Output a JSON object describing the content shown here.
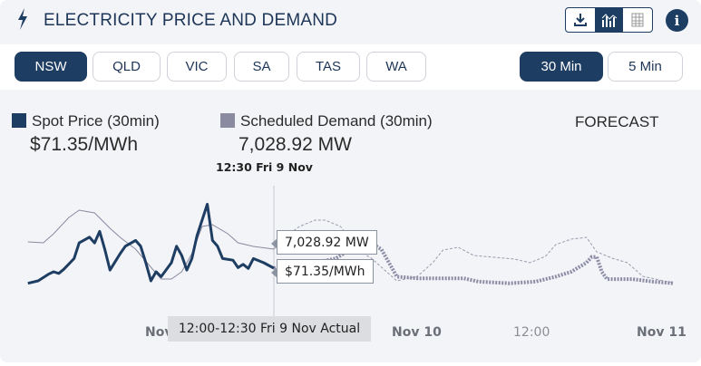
{
  "header": {
    "title": "ELECTRICITY PRICE AND DEMAND",
    "icon": "lightning-bolt-icon",
    "view_icons": [
      "download-icon",
      "chart-icon",
      "table-icon"
    ],
    "active_view": "chart-icon",
    "info_icon": "info-icon"
  },
  "regions": {
    "items": [
      "NSW",
      "QLD",
      "VIC",
      "SA",
      "TAS",
      "WA"
    ],
    "selected": "NSW"
  },
  "intervals": {
    "items": [
      "30 Min",
      "5 Min"
    ],
    "selected": "30 Min"
  },
  "colors": {
    "accent": "#1e3d62",
    "demand": "#8a8aa0",
    "background": "#f3f4f7"
  },
  "legend": {
    "price_label": "Spot Price (30min)",
    "price_value": "$71.35/MWh",
    "demand_label": "Scheduled Demand (30min)",
    "demand_value": "7,028.92 MW",
    "forecast_label": "FORECAST",
    "timestamp": "12:30 Fri 9 Nov"
  },
  "chart_data": {
    "type": "line",
    "x_ticks": [
      "Nov 9",
      "Nov 10",
      "12:00",
      "Nov 11"
    ],
    "grid": false,
    "crosshair_time": "9 Nov 12:30",
    "tooltips": {
      "demand": "7,028.92 MW",
      "price": "$71.35/MWh",
      "x": "12:00-12:30 Fri 9 Nov Actual"
    },
    "series": [
      {
        "name": "Spot Price (30min)",
        "kind": "actual",
        "unit": "$/MWh",
        "points": [
          [
            "8 Nov 12:30",
            53
          ],
          [
            "8 Nov 13:30",
            56
          ],
          [
            "8 Nov 14:30",
            64
          ],
          [
            "8 Nov 15:00",
            67
          ],
          [
            "8 Nov 15:30",
            65
          ],
          [
            "8 Nov 16:00",
            70
          ],
          [
            "8 Nov 17:00",
            83
          ],
          [
            "8 Nov 17:30",
            102
          ],
          [
            "8 Nov 18:30",
            109
          ],
          [
            "8 Nov 19:00",
            102
          ],
          [
            "8 Nov 19:30",
            116
          ],
          [
            "8 Nov 20:00",
            94
          ],
          [
            "8 Nov 20:30",
            69
          ],
          [
            "8 Nov 21:30",
            89
          ],
          [
            "8 Nov 22:00",
            98
          ],
          [
            "8 Nov 23:00",
            105
          ],
          [
            "8 Nov 23:30",
            98
          ],
          [
            "9 Nov 00:00",
            78
          ],
          [
            "9 Nov 00:30",
            56
          ],
          [
            "9 Nov 01:00",
            67
          ],
          [
            "9 Nov 01:30",
            61
          ],
          [
            "9 Nov 02:30",
            78
          ],
          [
            "9 Nov 03:00",
            98
          ],
          [
            "9 Nov 03:30",
            87
          ],
          [
            "9 Nov 04:00",
            69
          ],
          [
            "9 Nov 04:30",
            83
          ],
          [
            "9 Nov 05:00",
            111
          ],
          [
            "9 Nov 06:00",
            149
          ],
          [
            "9 Nov 06:30",
            105
          ],
          [
            "9 Nov 07:00",
            98
          ],
          [
            "9 Nov 07:30",
            83
          ],
          [
            "9 Nov 08:30",
            81
          ],
          [
            "9 Nov 09:00",
            72
          ],
          [
            "9 Nov 09:30",
            76
          ],
          [
            "9 Nov 10:00",
            71
          ],
          [
            "9 Nov 10:30",
            83
          ],
          [
            "9 Nov 11:30",
            78
          ],
          [
            "9 Nov 12:30",
            71.35
          ]
        ]
      },
      {
        "name": "Spot Price (30min)",
        "kind": "forecast",
        "unit": "$/MWh",
        "points": [
          [
            "9 Nov 12:30",
            71.35
          ],
          [
            "9 Nov 14:00",
            75
          ],
          [
            "9 Nov 16:30",
            78
          ],
          [
            "9 Nov 18:30",
            83
          ],
          [
            "9 Nov 20:30",
            98
          ],
          [
            "9 Nov 22:00",
            102
          ],
          [
            "9 Nov 23:00",
            94
          ],
          [
            "10 Nov 00:30",
            61
          ],
          [
            "10 Nov 02:30",
            59
          ],
          [
            "10 Nov 07:00",
            59
          ],
          [
            "10 Nov 08:30",
            55
          ],
          [
            "10 Nov 11:30",
            53
          ],
          [
            "10 Nov 14:00",
            55
          ],
          [
            "10 Nov 16:00",
            61
          ],
          [
            "10 Nov 17:30",
            67
          ],
          [
            "10 Nov 19:00",
            78
          ],
          [
            "10 Nov 19:30",
            85
          ],
          [
            "10 Nov 20:00",
            85
          ],
          [
            "10 Nov 20:30",
            67
          ],
          [
            "10 Nov 21:00",
            58
          ],
          [
            "10 Nov 23:30",
            58
          ],
          [
            "11 Nov 01:30",
            55
          ],
          [
            "11 Nov 03:30",
            53
          ]
        ]
      },
      {
        "name": "Scheduled Demand (30min)",
        "kind": "actual",
        "unit": "MW",
        "points": [
          [
            "8 Nov 12:30",
            7269
          ],
          [
            "8 Nov 14:00",
            7239
          ],
          [
            "8 Nov 15:00",
            7539
          ],
          [
            "8 Nov 16:30",
            8079
          ],
          [
            "8 Nov 17:30",
            8319
          ],
          [
            "8 Nov 19:00",
            8229
          ],
          [
            "8 Nov 20:30",
            7719
          ],
          [
            "8 Nov 21:30",
            7419
          ],
          [
            "8 Nov 23:00",
            7029
          ],
          [
            "9 Nov 00:30",
            6429
          ],
          [
            "9 Nov 01:30",
            6039
          ],
          [
            "9 Nov 02:30",
            6039
          ],
          [
            "9 Nov 03:30",
            6279
          ],
          [
            "9 Nov 04:30",
            6879
          ],
          [
            "9 Nov 05:30",
            7779
          ],
          [
            "9 Nov 06:30",
            7839
          ],
          [
            "9 Nov 08:00",
            7539
          ],
          [
            "9 Nov 09:00",
            7239
          ],
          [
            "9 Nov 10:30",
            7119
          ],
          [
            "9 Nov 12:30",
            7028.92
          ]
        ]
      },
      {
        "name": "Scheduled Demand (30min)",
        "kind": "forecast",
        "unit": "MW",
        "points": [
          [
            "9 Nov 12:30",
            7028.92
          ],
          [
            "9 Nov 13:30",
            7419
          ],
          [
            "9 Nov 15:00",
            7779
          ],
          [
            "9 Nov 16:30",
            7989
          ],
          [
            "9 Nov 17:30",
            7989
          ],
          [
            "9 Nov 19:00",
            7779
          ],
          [
            "9 Nov 20:00",
            7329
          ],
          [
            "9 Nov 20:30",
            7029
          ],
          [
            "9 Nov 22:00",
            6729
          ],
          [
            "10 Nov 00:30",
            5979
          ],
          [
            "10 Nov 02:30",
            6129
          ],
          [
            "10 Nov 04:00",
            6579
          ],
          [
            "10 Nov 05:00",
            6999
          ],
          [
            "10 Nov 06:30",
            7089
          ],
          [
            "10 Nov 08:00",
            6819
          ],
          [
            "10 Nov 10:00",
            6759
          ],
          [
            "10 Nov 12:00",
            6699
          ],
          [
            "10 Nov 13:30",
            6579
          ],
          [
            "10 Nov 15:00",
            6789
          ],
          [
            "10 Nov 16:00",
            7179
          ],
          [
            "10 Nov 17:30",
            7359
          ],
          [
            "10 Nov 19:00",
            7419
          ],
          [
            "10 Nov 20:00",
            6939
          ],
          [
            "10 Nov 21:30",
            6729
          ],
          [
            "10 Nov 23:00",
            6579
          ],
          [
            "11 Nov 00:30",
            6129
          ],
          [
            "11 Nov 02:30",
            5979
          ],
          [
            "11 Nov 03:30",
            5919
          ]
        ]
      }
    ]
  }
}
